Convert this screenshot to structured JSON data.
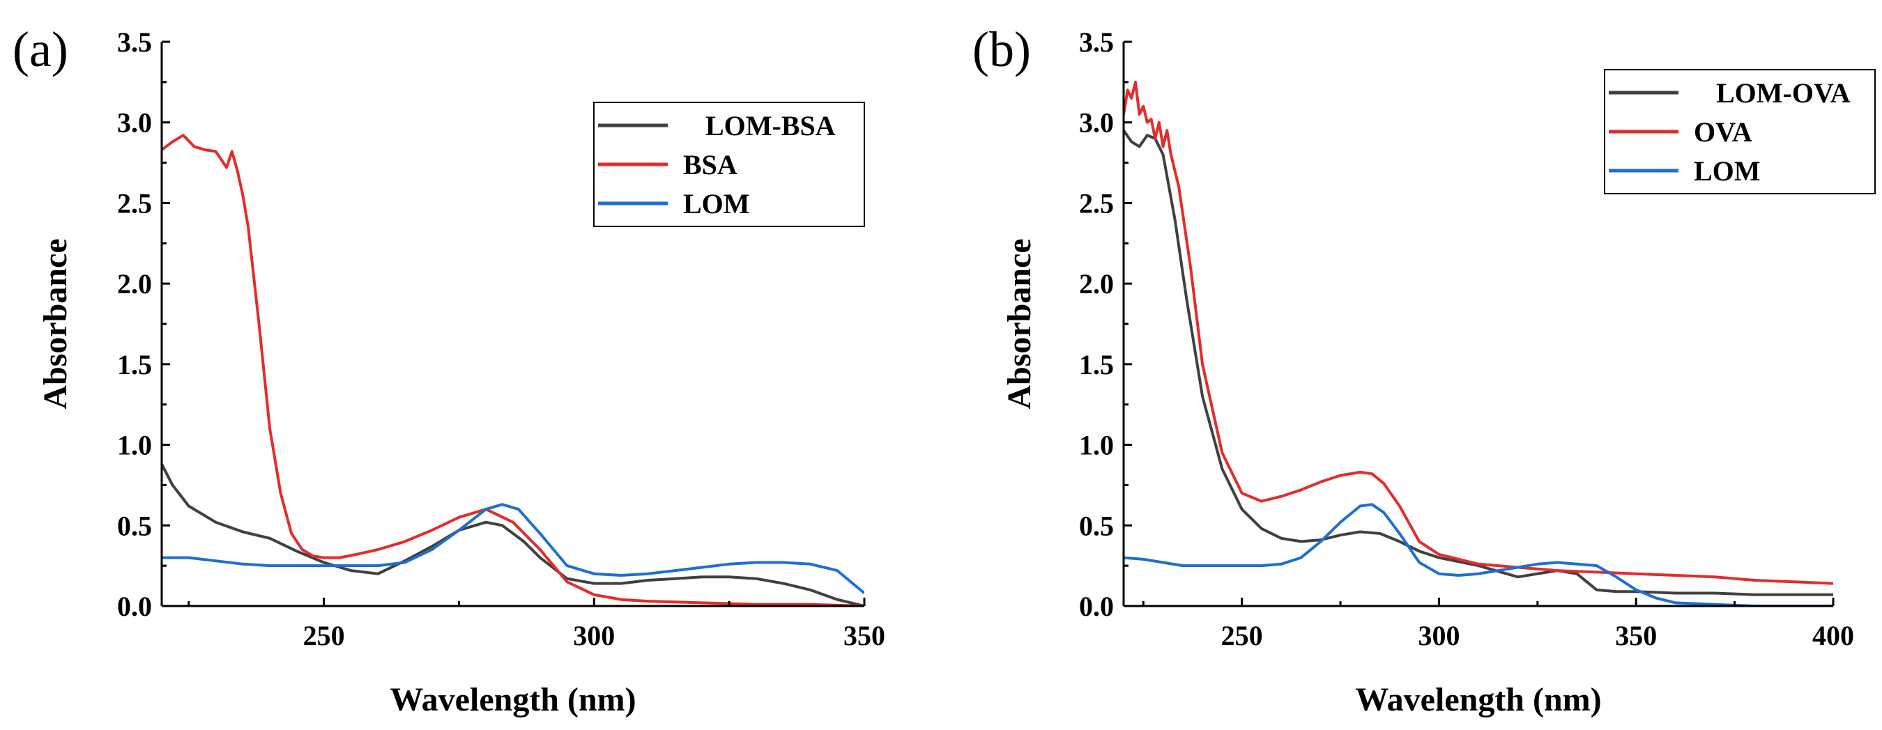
{
  "chart_data": [
    {
      "type": "line",
      "panel_label": "(a)",
      "xlabel": "Wavelength (nm)",
      "ylabel": "Absorbance",
      "xlim": [
        220,
        350
      ],
      "ylim": [
        0,
        3.5
      ],
      "x_ticks": [
        250,
        300,
        350
      ],
      "y_ticks": [
        0.0,
        0.5,
        1.0,
        1.5,
        2.0,
        2.5,
        3.0,
        3.5
      ],
      "legend_position": "top-right",
      "series": [
        {
          "name": "LOM-BSA",
          "color": "#404040",
          "x": [
            220,
            222,
            225,
            230,
            235,
            240,
            245,
            250,
            255,
            260,
            265,
            270,
            275,
            280,
            283,
            287,
            290,
            295,
            300,
            305,
            310,
            315,
            320,
            325,
            330,
            335,
            340,
            345,
            350
          ],
          "y": [
            0.88,
            0.75,
            0.62,
            0.52,
            0.46,
            0.42,
            0.34,
            0.27,
            0.22,
            0.2,
            0.28,
            0.37,
            0.47,
            0.52,
            0.5,
            0.4,
            0.3,
            0.17,
            0.14,
            0.14,
            0.16,
            0.17,
            0.18,
            0.18,
            0.17,
            0.14,
            0.1,
            0.04,
            0.0
          ]
        },
        {
          "name": "BSA",
          "color": "#e32c2c",
          "x": [
            220,
            222,
            224,
            226,
            228,
            230,
            231,
            232,
            233,
            234,
            235,
            236,
            238,
            240,
            242,
            244,
            246,
            248,
            250,
            253,
            256,
            260,
            265,
            270,
            275,
            280,
            285,
            290,
            295,
            300,
            305,
            310,
            320,
            330,
            340,
            350
          ],
          "y": [
            2.83,
            2.88,
            2.92,
            2.85,
            2.83,
            2.82,
            2.77,
            2.72,
            2.82,
            2.7,
            2.55,
            2.35,
            1.75,
            1.1,
            0.7,
            0.45,
            0.35,
            0.31,
            0.3,
            0.3,
            0.32,
            0.35,
            0.4,
            0.47,
            0.55,
            0.6,
            0.52,
            0.35,
            0.15,
            0.07,
            0.04,
            0.03,
            0.02,
            0.01,
            0.01,
            0.0
          ]
        },
        {
          "name": "LOM",
          "color": "#1f6fd1",
          "x": [
            220,
            225,
            230,
            235,
            240,
            245,
            250,
            255,
            260,
            265,
            270,
            275,
            280,
            283,
            286,
            290,
            295,
            300,
            305,
            310,
            315,
            320,
            325,
            330,
            335,
            340,
            345,
            350
          ],
          "y": [
            0.3,
            0.3,
            0.28,
            0.26,
            0.25,
            0.25,
            0.25,
            0.25,
            0.25,
            0.27,
            0.35,
            0.47,
            0.6,
            0.63,
            0.6,
            0.45,
            0.25,
            0.2,
            0.19,
            0.2,
            0.22,
            0.24,
            0.26,
            0.27,
            0.27,
            0.26,
            0.22,
            0.08
          ]
        }
      ]
    },
    {
      "type": "line",
      "panel_label": "(b)",
      "xlabel": "Wavelength (nm)",
      "ylabel": "Absorbance",
      "xlim": [
        220,
        400
      ],
      "ylim": [
        0,
        3.5
      ],
      "x_ticks": [
        250,
        300,
        350,
        400
      ],
      "y_ticks": [
        0.0,
        0.5,
        1.0,
        1.5,
        2.0,
        2.5,
        3.0,
        3.5
      ],
      "legend_position": "top-right",
      "series": [
        {
          "name": "LOM-OVA",
          "color": "#404040",
          "x": [
            220,
            222,
            224,
            226,
            228,
            230,
            233,
            236,
            240,
            245,
            250,
            255,
            260,
            265,
            270,
            275,
            280,
            285,
            290,
            295,
            300,
            310,
            320,
            325,
            330,
            335,
            340,
            345,
            350,
            360,
            370,
            380,
            390,
            400
          ],
          "y": [
            2.95,
            2.88,
            2.85,
            2.92,
            2.9,
            2.8,
            2.4,
            1.9,
            1.3,
            0.85,
            0.6,
            0.48,
            0.42,
            0.4,
            0.41,
            0.44,
            0.46,
            0.45,
            0.4,
            0.34,
            0.3,
            0.25,
            0.18,
            0.2,
            0.22,
            0.2,
            0.1,
            0.09,
            0.09,
            0.08,
            0.08,
            0.07,
            0.07,
            0.07
          ]
        },
        {
          "name": "OVA",
          "color": "#e32c2c",
          "x": [
            220,
            221,
            222,
            223,
            224,
            225,
            226,
            227,
            228,
            229,
            230,
            231,
            232,
            234,
            237,
            240,
            245,
            250,
            255,
            260,
            265,
            270,
            275,
            280,
            283,
            286,
            290,
            295,
            300,
            310,
            320,
            330,
            340,
            350,
            360,
            370,
            380,
            390,
            400
          ],
          "y": [
            3.05,
            3.2,
            3.15,
            3.25,
            3.05,
            3.1,
            3.0,
            3.02,
            2.9,
            3.0,
            2.85,
            2.95,
            2.8,
            2.6,
            2.1,
            1.5,
            0.95,
            0.7,
            0.65,
            0.68,
            0.72,
            0.77,
            0.81,
            0.83,
            0.82,
            0.76,
            0.62,
            0.4,
            0.32,
            0.26,
            0.24,
            0.22,
            0.21,
            0.2,
            0.19,
            0.18,
            0.16,
            0.15,
            0.14
          ]
        },
        {
          "name": "LOM",
          "color": "#1f6fd1",
          "x": [
            220,
            225,
            230,
            235,
            240,
            245,
            250,
            255,
            260,
            265,
            270,
            275,
            280,
            283,
            286,
            290,
            295,
            300,
            305,
            310,
            315,
            320,
            325,
            330,
            335,
            340,
            345,
            350,
            355,
            360,
            370,
            380,
            390,
            400
          ],
          "y": [
            0.3,
            0.29,
            0.27,
            0.25,
            0.25,
            0.25,
            0.25,
            0.25,
            0.26,
            0.3,
            0.4,
            0.52,
            0.62,
            0.63,
            0.58,
            0.45,
            0.27,
            0.2,
            0.19,
            0.2,
            0.22,
            0.24,
            0.26,
            0.27,
            0.26,
            0.25,
            0.18,
            0.1,
            0.05,
            0.02,
            0.01,
            0.0,
            0.0,
            0.0
          ]
        }
      ]
    }
  ]
}
